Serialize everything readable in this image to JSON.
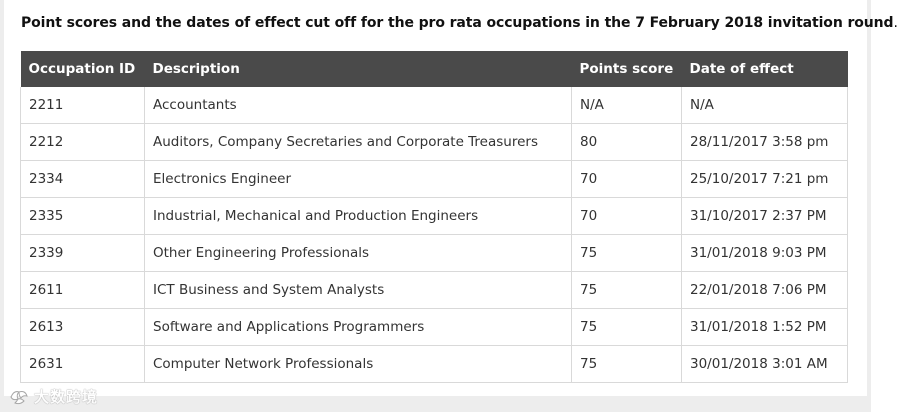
{
  "heading": {
    "text": "Point scores and the dates of effect cut off for the pro rata occupations in the 7 February 2018 invitation round",
    "trailing": "."
  },
  "table": {
    "headers": {
      "id": "Occupation ID",
      "description": "Description",
      "points": "Points score",
      "date": "Date of effect"
    },
    "rows": [
      {
        "id": "2211",
        "description": "Accountants",
        "points": "N/A",
        "date": "N/A"
      },
      {
        "id": "2212",
        "description": "Auditors, Company Secretaries and Corporate Treasurers",
        "points": "80",
        "date": "28/11/2017 3:58 pm"
      },
      {
        "id": "2334",
        "description": "Electronics Engineer",
        "points": "70",
        "date": "25/10/2017 7:21 pm"
      },
      {
        "id": "2335",
        "description": "Industrial, Mechanical and Production Engineers",
        "points": "70",
        "date": "31/10/2017  2:37 PM"
      },
      {
        "id": "2339",
        "description": "Other Engineering Professionals",
        "points": "75",
        "date": "31/01/2018  9:03 PM"
      },
      {
        "id": "2611",
        "description": "ICT Business and System Analysts",
        "points": "75",
        "date": "22/01/2018  7:06 PM"
      },
      {
        "id": "2613",
        "description": "Software and Applications Programmers",
        "points": "75",
        "date": "31/01/2018  1:52 PM"
      },
      {
        "id": "2631",
        "description": "Computer Network Professionals",
        "points": "75",
        "date": "30/01/2018  3:01 AM"
      }
    ]
  },
  "watermark": {
    "text": "大数跨境",
    "icon": "watermark-logo-icon"
  },
  "colors": {
    "header_bg": "#4a4a4a",
    "header_text": "#ffffff",
    "border": "#d9d9d9",
    "outer_bg": "#ededed"
  }
}
